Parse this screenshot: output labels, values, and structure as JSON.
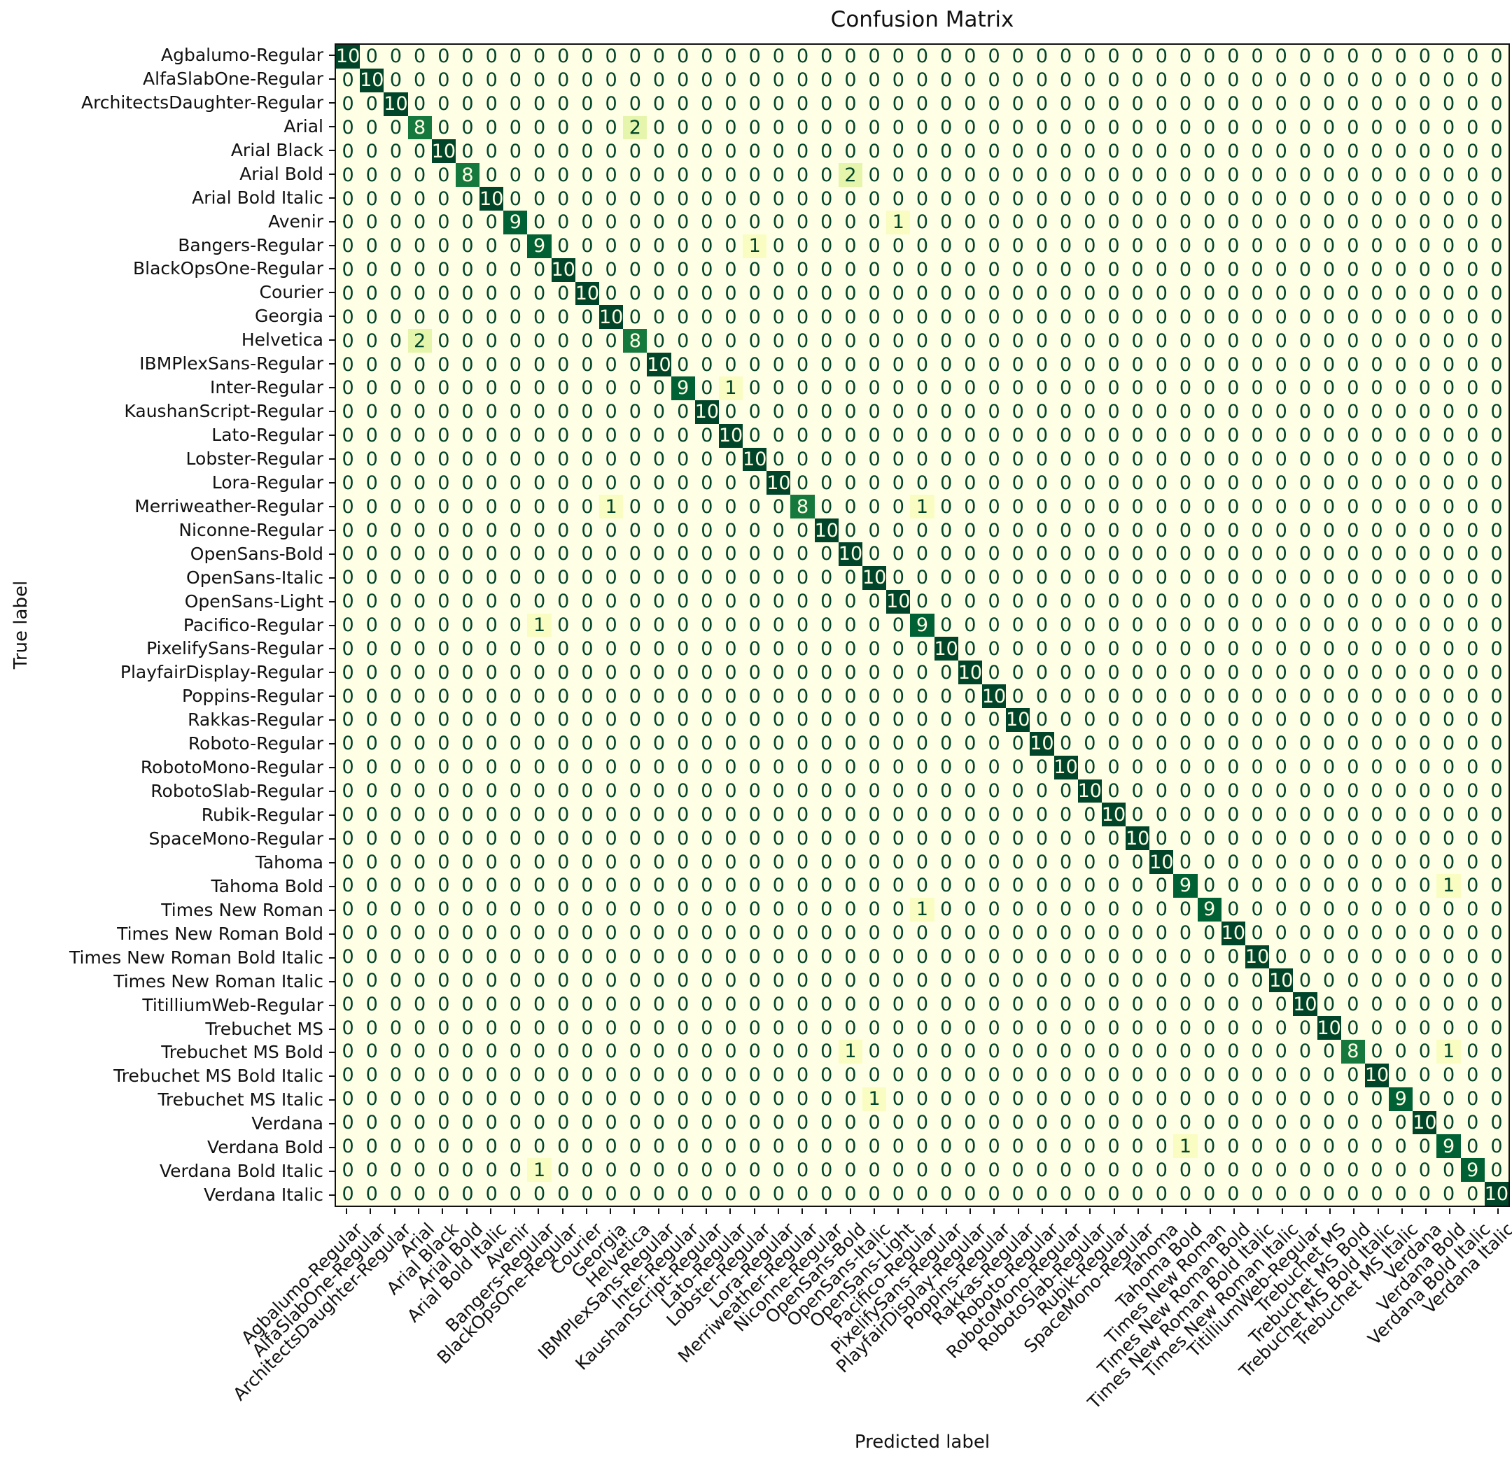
{
  "chart_data": {
    "type": "heatmap",
    "title": "Confusion Matrix",
    "xlabel": "Predicted label",
    "ylabel": "True label",
    "legend": "none",
    "grid": false,
    "vmin": 0,
    "vmax": 10,
    "colormap": "YlGn",
    "colormap_stops": [
      "#ffffe5",
      "#f7fcb9",
      "#d9f0a3",
      "#addd8e",
      "#78c679",
      "#41ab5d",
      "#238443",
      "#006837",
      "#004529"
    ],
    "text_color_low_cells": "#004529",
    "text_color_high_cells": "#ffffe5",
    "labels": [
      "Agbalumo-Regular",
      "AlfaSlabOne-Regular",
      "ArchitectsDaughter-Regular",
      "Arial",
      "Arial Black",
      "Arial Bold",
      "Arial Bold Italic",
      "Avenir",
      "Bangers-Regular",
      "BlackOpsOne-Regular",
      "Courier",
      "Georgia",
      "Helvetica",
      "IBMPlexSans-Regular",
      "Inter-Regular",
      "KaushanScript-Regular",
      "Lato-Regular",
      "Lobster-Regular",
      "Lora-Regular",
      "Merriweather-Regular",
      "Niconne-Regular",
      "OpenSans-Bold",
      "OpenSans-Italic",
      "OpenSans-Light",
      "Pacifico-Regular",
      "PixelifySans-Regular",
      "PlayfairDisplay-Regular",
      "Poppins-Regular",
      "Rakkas-Regular",
      "Roboto-Regular",
      "RobotoMono-Regular",
      "RobotoSlab-Regular",
      "Rubik-Regular",
      "SpaceMono-Regular",
      "Tahoma",
      "Tahoma Bold",
      "Times New Roman",
      "Times New Roman Bold",
      "Times New Roman Bold Italic",
      "Times New Roman Italic",
      "TitilliumWeb-Regular",
      "Trebuchet MS",
      "Trebuchet MS Bold",
      "Trebuchet MS Bold Italic",
      "Trebuchet MS Italic",
      "Verdana",
      "Verdana Bold",
      "Verdana Bold Italic",
      "Verdana Italic"
    ],
    "default_value": 0,
    "diagonal": [
      10,
      10,
      10,
      8,
      10,
      8,
      10,
      9,
      9,
      10,
      10,
      10,
      8,
      10,
      9,
      10,
      10,
      10,
      10,
      8,
      10,
      10,
      10,
      10,
      9,
      10,
      10,
      10,
      10,
      10,
      10,
      10,
      10,
      10,
      10,
      9,
      9,
      10,
      10,
      10,
      10,
      10,
      8,
      10,
      9,
      10,
      9,
      9,
      10
    ],
    "off_diagonal": [
      {
        "row_index": 3,
        "col_index": 12,
        "row": "Arial",
        "col": "Helvetica",
        "value": 2
      },
      {
        "row_index": 5,
        "col_index": 21,
        "row": "Arial Bold",
        "col": "OpenSans-Bold",
        "value": 2
      },
      {
        "row_index": 7,
        "col_index": 23,
        "row": "Avenir",
        "col": "OpenSans-Light",
        "value": 1
      },
      {
        "row_index": 8,
        "col_index": 17,
        "row": "Bangers-Regular",
        "col": "Lobster-Regular",
        "value": 1
      },
      {
        "row_index": 12,
        "col_index": 3,
        "row": "Helvetica",
        "col": "Arial",
        "value": 2
      },
      {
        "row_index": 14,
        "col_index": 16,
        "row": "Inter-Regular",
        "col": "Lato-Regular",
        "value": 1
      },
      {
        "row_index": 19,
        "col_index": 11,
        "row": "Merriweather-Regular",
        "col": "Georgia",
        "value": 1
      },
      {
        "row_index": 19,
        "col_index": 24,
        "row": "Merriweather-Regular",
        "col": "Pacifico-Regular",
        "value": 1
      },
      {
        "row_index": 24,
        "col_index": 8,
        "row": "Pacifico-Regular",
        "col": "Bangers-Regular",
        "value": 1
      },
      {
        "row_index": 35,
        "col_index": 46,
        "row": "Tahoma Bold",
        "col": "Verdana Bold",
        "value": 1
      },
      {
        "row_index": 36,
        "col_index": 24,
        "row": "Times New Roman",
        "col": "Pacifico-Regular",
        "value": 1
      },
      {
        "row_index": 42,
        "col_index": 21,
        "row": "Trebuchet MS Bold",
        "col": "OpenSans-Bold",
        "value": 1
      },
      {
        "row_index": 42,
        "col_index": 46,
        "row": "Trebuchet MS Bold",
        "col": "Verdana Bold",
        "value": 1
      },
      {
        "row_index": 44,
        "col_index": 22,
        "row": "Trebuchet MS Italic",
        "col": "OpenSans-Italic",
        "value": 1
      },
      {
        "row_index": 46,
        "col_index": 35,
        "row": "Verdana Bold",
        "col": "Tahoma Bold",
        "value": 1
      },
      {
        "row_index": 47,
        "col_index": 8,
        "row": "Verdana Bold Italic",
        "col": "Bangers-Regular",
        "value": 1
      }
    ]
  }
}
